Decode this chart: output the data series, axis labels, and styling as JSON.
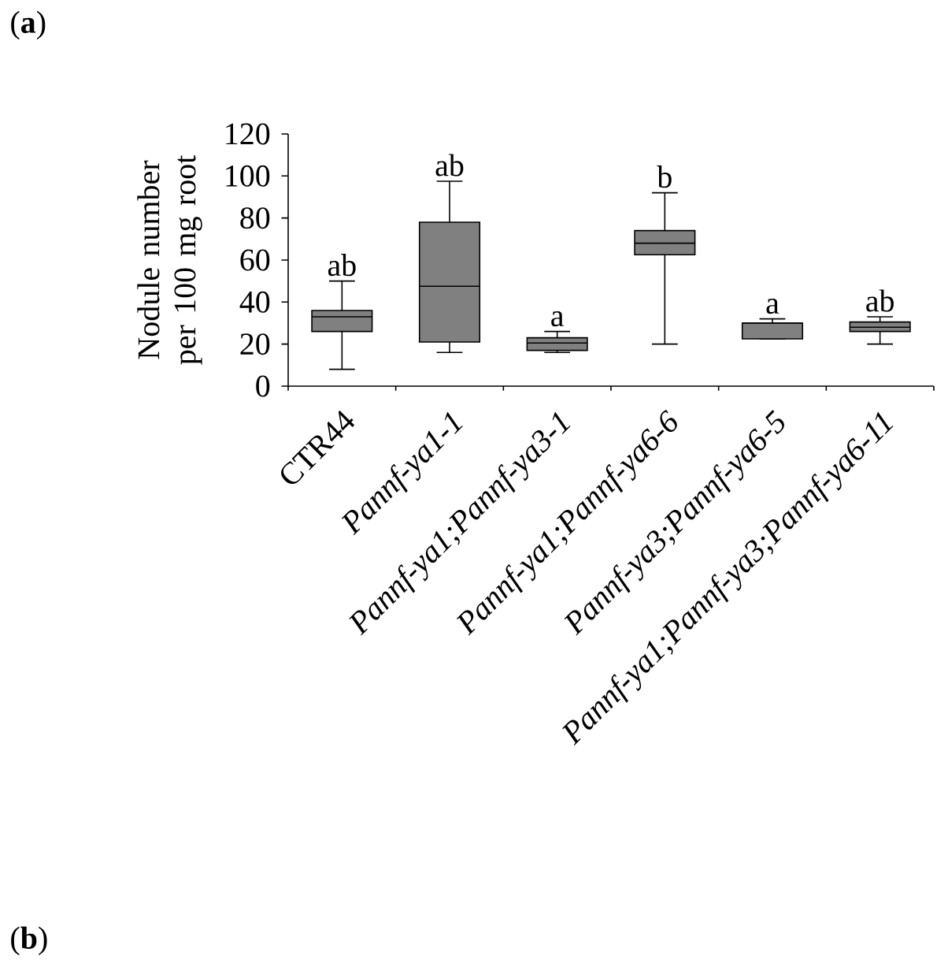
{
  "chart_data": {
    "type": "box",
    "ylabel": "Nodule number per 100 mg root",
    "categories": [
      "CTR44",
      "*Pannf-ya1-1*",
      "*Pannf-ya1;Pannf-ya3-1*",
      "*Pannf-ya1;Pannf-ya6-6*",
      "*Pannf-ya3;Pannf-ya6-5*",
      "*Pannf-ya1;Pannf-ya3;Pannf-ya6-11*"
    ],
    "color": "#808080",
    "boxes": [
      {
        "low": 8,
        "q1": 26,
        "median": 33,
        "q3": 36,
        "high": 50
      },
      {
        "low": 16,
        "q1": 21,
        "median": 47.5,
        "q3": 78,
        "high": 97.5
      },
      {
        "low": 16,
        "q1": 17,
        "median": 20.5,
        "q3": 23,
        "high": 26
      },
      {
        "low": 20,
        "q1": 62.5,
        "median": 68,
        "q3": 74,
        "high": 92
      },
      {
        "low": 22.5,
        "q1": 22.5,
        "median": 30,
        "q3": 30,
        "high": 32
      },
      {
        "low": 20,
        "q1": 26,
        "median": 28,
        "q3": 30.5,
        "high": 33
      }
    ],
    "ylim": [
      0,
      120
    ],
    "yticks": [
      0,
      20,
      40,
      60,
      80,
      100,
      120
    ],
    "annotations": [
      "(**a**)",
      "ab",
      "ab",
      "a",
      "b",
      "a",
      "ab",
      "(**b**)"
    ]
  }
}
